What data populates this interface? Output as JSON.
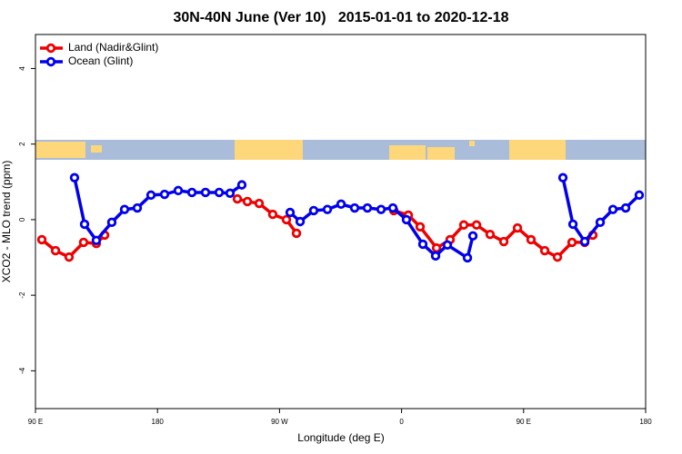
{
  "chart_data": {
    "type": "line",
    "title": "30N-40N June (Ver 10)   2015-01-01 to 2020-12-18",
    "x_label": "Longitude (deg E)",
    "y_label": "XCO2 - MLO trend (ppm)",
    "xlim": [
      90,
      540
    ],
    "ylim": [
      -5,
      4.9
    ],
    "xticks": [
      {
        "value": 90,
        "label": "90 E"
      },
      {
        "value": 180,
        "label": "180"
      },
      {
        "value": 270,
        "label": "90 W"
      },
      {
        "value": 360,
        "label": "0"
      },
      {
        "value": 450,
        "label": "90 E"
      },
      {
        "value": 540,
        "label": "180"
      }
    ],
    "yticks": [
      -4,
      -2,
      0,
      2,
      4
    ],
    "legend": "top-left",
    "series": [
      {
        "name": "Land (Nadir&Glint)",
        "color": "#ee0000",
        "x": [
          94.7,
          104.8,
          114.8,
          125.5,
          134.9,
          141,
          null,
          238.9,
          246.3,
          255,
          265,
          275.1,
          282.5,
          null,
          354.3,
          365,
          373.7,
          385.8,
          395.8,
          405.9,
          415.3,
          425.3,
          435.4,
          445.5,
          455.5,
          465.6,
          475,
          485.7,
          495.1,
          501.1
        ],
        "values": [
          -0.53,
          -0.82,
          -0.99,
          -0.6,
          -0.63,
          -0.41,
          null,
          0.55,
          0.48,
          0.43,
          0.14,
          0,
          -0.36,
          null,
          0.24,
          0.12,
          -0.19,
          -0.75,
          -0.53,
          -0.14,
          -0.14,
          -0.39,
          -0.58,
          -0.22,
          -0.53,
          -0.82,
          -0.99,
          -0.6,
          -0.6,
          -0.41
        ]
      },
      {
        "name": "Ocean (Glint)",
        "color": "#0000ee",
        "x": [
          118.8,
          126.2,
          134.9,
          146.3,
          155.7,
          165.1,
          175.2,
          185.2,
          195.3,
          205.4,
          215.4,
          225.5,
          233.5,
          242.2,
          null,
          277.8,
          285.2,
          295.2,
          305.3,
          315.4,
          325.4,
          334.8,
          344.9,
          353.6,
          363.6,
          375.7,
          385.1,
          393.8,
          408.6,
          412.6,
          null,
          479,
          486.4,
          495.1,
          506.5,
          515.9,
          525.3,
          535.3
        ],
        "values": [
          1.11,
          -0.12,
          -0.55,
          -0.07,
          0.27,
          0.31,
          0.65,
          0.67,
          0.77,
          0.72,
          0.72,
          0.72,
          0.7,
          0.92,
          null,
          0.19,
          -0.05,
          0.24,
          0.27,
          0.41,
          0.31,
          0.31,
          0.27,
          0.31,
          0,
          -0.65,
          -0.96,
          -0.67,
          -1.01,
          -0.43,
          null,
          1.11,
          -0.12,
          -0.58,
          -0.07,
          0.27,
          0.31,
          0.65
        ]
      }
    ]
  }
}
